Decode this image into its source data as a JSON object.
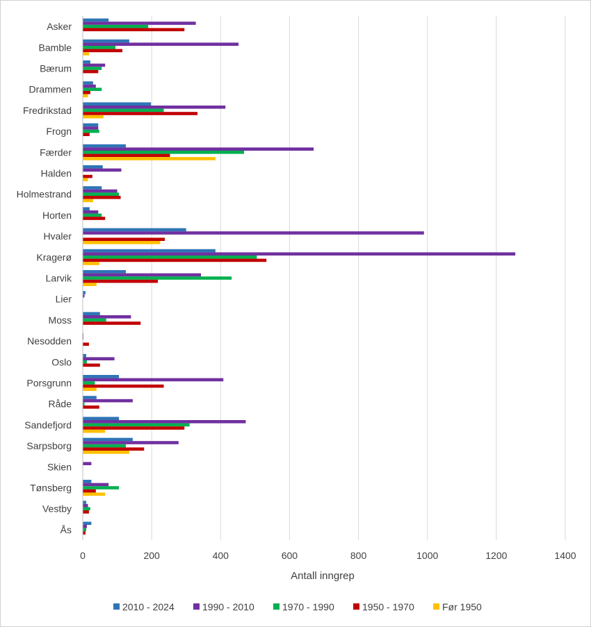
{
  "chart_data": {
    "type": "bar",
    "orientation": "horizontal",
    "title": "",
    "xlabel": "Antall inngrep",
    "ylabel": "",
    "xlim": [
      0,
      1400
    ],
    "xticks": [
      0,
      200,
      400,
      600,
      800,
      1000,
      1200,
      1400
    ],
    "grid": true,
    "legend_position": "bottom",
    "categories": [
      "Asker",
      "Bamble",
      "Bærum",
      "Drammen",
      "Fredrikstad",
      "Frogn",
      "Færder",
      "Halden",
      "Holmestrand",
      "Horten",
      "Hvaler",
      "Kragerø",
      "Larvik",
      "Lier",
      "Moss",
      "Nesodden",
      "Oslo",
      "Porsgrunn",
      "Råde",
      "Sandefjord",
      "Sarpsborg",
      "Skien",
      "Tønsberg",
      "Vestby",
      "Ås"
    ],
    "series": [
      {
        "name": "2010 - 2024",
        "color": "#2e75b6",
        "values": [
          75,
          135,
          22,
          30,
          198,
          45,
          125,
          58,
          55,
          20,
          300,
          385,
          125,
          8,
          50,
          2,
          10,
          105,
          40,
          105,
          145,
          0,
          25,
          10,
          25
        ]
      },
      {
        "name": "1990 - 2010",
        "color": "#7030a0",
        "values": [
          328,
          452,
          65,
          38,
          414,
          45,
          670,
          112,
          100,
          45,
          990,
          1255,
          343,
          5,
          140,
          2,
          92,
          408,
          145,
          473,
          278,
          25,
          75,
          15,
          12
        ]
      },
      {
        "name": "1970 - 1990",
        "color": "#00b050",
        "values": [
          190,
          95,
          55,
          55,
          235,
          48,
          468,
          0,
          105,
          55,
          0,
          505,
          432,
          0,
          68,
          0,
          12,
          35,
          5,
          310,
          125,
          0,
          105,
          22,
          10
        ]
      },
      {
        "name": "1950 - 1970",
        "color": "#c00000",
        "values": [
          295,
          115,
          45,
          22,
          333,
          20,
          253,
          28,
          110,
          65,
          238,
          533,
          218,
          0,
          168,
          18,
          50,
          235,
          48,
          295,
          178,
          0,
          38,
          18,
          8
        ]
      },
      {
        "name": "Før 1950",
        "color": "#ffc000",
        "values": [
          0,
          18,
          0,
          15,
          60,
          0,
          385,
          15,
          30,
          0,
          225,
          48,
          40,
          0,
          0,
          0,
          0,
          40,
          0,
          65,
          135,
          0,
          65,
          0,
          0
        ]
      }
    ]
  }
}
